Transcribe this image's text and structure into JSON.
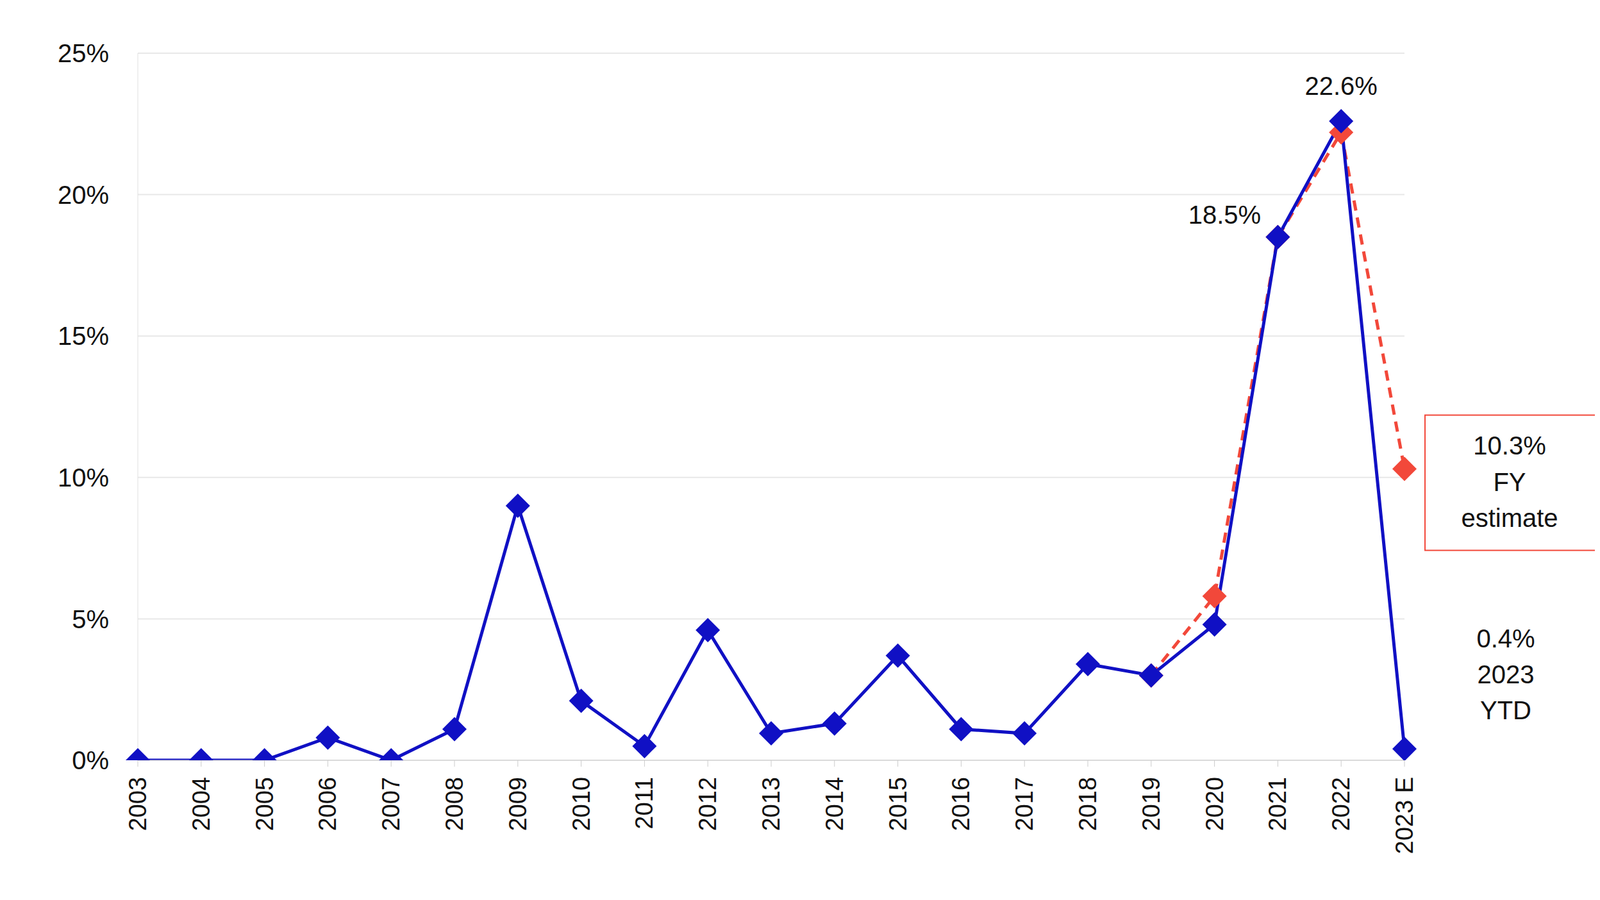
{
  "chart_data": {
    "type": "line",
    "categories": [
      "2003",
      "2004",
      "2005",
      "2006",
      "2007",
      "2008",
      "2009",
      "2010",
      "2011",
      "2012",
      "2013",
      "2014",
      "2015",
      "2016",
      "2017",
      "2018",
      "2019",
      "2020",
      "2021",
      "2022",
      "2023 E"
    ],
    "series": [
      {
        "color": "#1010c4",
        "marker": "diamond",
        "line_style": "solid",
        "values": [
          0,
          0,
          0,
          0.8,
          0,
          1.1,
          9.0,
          2.1,
          0.5,
          4.6,
          0.95,
          1.3,
          3.7,
          1.1,
          0.95,
          3.4,
          3.0,
          4.8,
          18.5,
          22.6,
          0.4
        ],
        "annotations": [
          {
            "x": "2022",
            "lines": [
              "22.6%"
            ]
          },
          {
            "x": "2021",
            "lines": [
              "18.5%"
            ]
          },
          {
            "x": "2023 E",
            "lines": [
              "0.4%",
              "2023",
              "YTD"
            ]
          }
        ]
      },
      {
        "color": "#f2483a",
        "marker": "diamond",
        "line_style": "dashed",
        "values": [
          null,
          null,
          null,
          null,
          null,
          null,
          null,
          null,
          null,
          null,
          null,
          null,
          null,
          null,
          null,
          null,
          3.0,
          5.8,
          18.5,
          22.2,
          10.3
        ],
        "annotations": [
          {
            "x": "2023 E",
            "lines": [
              "10.3%",
              "FY",
              "estimate"
            ]
          }
        ]
      }
    ],
    "ylim": [
      0,
      25
    ],
    "yticks": [
      {
        "value": 0,
        "label": "0%"
      },
      {
        "value": 5,
        "label": "5%"
      },
      {
        "value": 10,
        "label": "10%"
      },
      {
        "value": 15,
        "label": "15%"
      },
      {
        "value": 20,
        "label": "20%"
      },
      {
        "value": 25,
        "label": "25%"
      }
    ],
    "grid": true
  }
}
